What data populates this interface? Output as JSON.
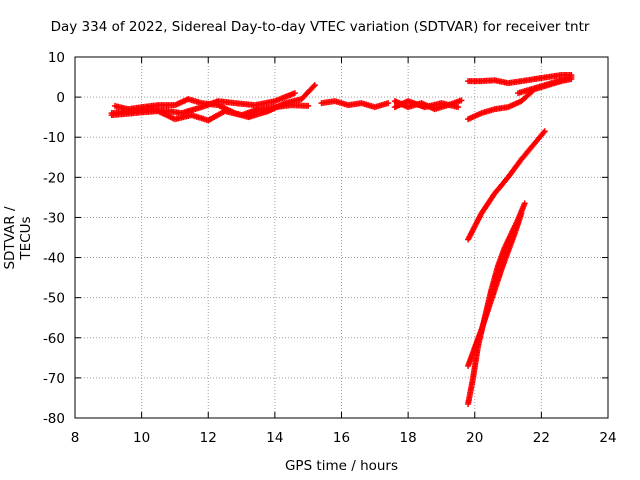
{
  "chart_data": {
    "type": "scatter",
    "title": "Day 334 of 2022, Sidereal Day-to-day VTEC variation (SDTVAR) for receiver tntr",
    "xlabel": "GPS time / hours",
    "ylabel": "SDTVAR / TECUs",
    "xlim": [
      8,
      24
    ],
    "ylim": [
      -80,
      10
    ],
    "xticks": [
      8,
      10,
      12,
      14,
      16,
      18,
      20,
      22,
      24
    ],
    "yticks": [
      -80,
      -70,
      -60,
      -50,
      -40,
      -30,
      -20,
      -10,
      0,
      10
    ],
    "grid": true,
    "marker": "+",
    "color": "#ff0000",
    "series": [
      {
        "x": [
          9.1,
          9.5,
          10.0,
          10.5,
          11.0,
          11.5,
          12.0,
          12.5,
          13.0,
          13.5,
          14.0,
          14.5,
          15.0
        ],
        "y": [
          -4.5,
          -4.2,
          -3.8,
          -3.5,
          -5.5,
          -4.5,
          -5.8,
          -3.5,
          -4.5,
          -3.0,
          -2.5,
          -2.0,
          -2.2
        ]
      },
      {
        "x": [
          9.2,
          9.6,
          10.0,
          10.5,
          11.0,
          11.4,
          11.8,
          12.3,
          12.8,
          13.2,
          13.8,
          14.3,
          14.8,
          15.2
        ],
        "y": [
          -2.2,
          -3.0,
          -2.5,
          -2.0,
          -2.0,
          -0.5,
          -1.5,
          -2.0,
          -4.0,
          -5.0,
          -3.5,
          -1.5,
          -0.5,
          3.0
        ]
      },
      {
        "x": [
          9.1,
          9.6,
          10.2,
          10.8,
          11.2,
          11.8,
          12.3,
          12.8,
          13.4,
          14.0,
          14.6
        ],
        "y": [
          -4.0,
          -3.5,
          -3.0,
          -3.5,
          -4.0,
          -2.5,
          -1.0,
          -1.5,
          -2.0,
          -1.0,
          1.0
        ]
      },
      {
        "x": [
          15.4,
          15.8,
          16.2,
          16.6,
          17.0,
          17.4
        ],
        "y": [
          -1.5,
          -1.0,
          -2.0,
          -1.5,
          -2.5,
          -1.5
        ]
      },
      {
        "x": [
          17.6,
          18.0,
          18.4,
          18.8,
          19.2,
          19.6
        ],
        "y": [
          -1.0,
          -2.5,
          -1.5,
          -3.0,
          -2.0,
          -0.8
        ]
      },
      {
        "x": [
          17.6,
          18.0,
          18.5,
          19.0,
          19.5
        ],
        "y": [
          -2.5,
          -1.0,
          -2.5,
          -1.5,
          -2.5
        ]
      },
      {
        "x": [
          19.8,
          20.2,
          20.6,
          21.0,
          21.4,
          21.8,
          22.2,
          22.6,
          22.9
        ],
        "y": [
          4.0,
          4.0,
          4.2,
          3.5,
          4.0,
          4.5,
          5.0,
          5.5,
          5.5
        ]
      },
      {
        "x": [
          19.8,
          20.2,
          20.6,
          21.0,
          21.4,
          21.8,
          22.2,
          22.6,
          22.9
        ],
        "y": [
          -5.5,
          -4.0,
          -3.0,
          -2.5,
          -1.0,
          2.0,
          3.0,
          4.0,
          4.5
        ]
      },
      {
        "x": [
          21.3,
          21.7,
          22.1,
          22.5,
          22.9
        ],
        "y": [
          1.0,
          2.0,
          3.0,
          4.0,
          5.0
        ]
      },
      {
        "x": [
          19.8,
          20.2,
          20.6,
          21.0,
          21.4,
          21.8,
          22.1
        ],
        "y": [
          -35.5,
          -29.0,
          -24.0,
          -20.0,
          -15.5,
          -11.5,
          -8.5
        ]
      },
      {
        "x": [
          19.8,
          19.95,
          20.1,
          20.3,
          20.5,
          20.7,
          20.9,
          21.1,
          21.3,
          21.5
        ],
        "y": [
          -76.5,
          -70.0,
          -62.0,
          -55.0,
          -48.0,
          -42.0,
          -37.5,
          -34.0,
          -30.5,
          -26.5
        ]
      },
      {
        "x": [
          19.8,
          20.0,
          20.2,
          20.4,
          20.6,
          20.8,
          21.0,
          21.2,
          21.4
        ],
        "y": [
          -67.0,
          -62.5,
          -58.0,
          -53.0,
          -48.0,
          -43.0,
          -38.5,
          -34.0,
          -29.0
        ]
      }
    ]
  }
}
